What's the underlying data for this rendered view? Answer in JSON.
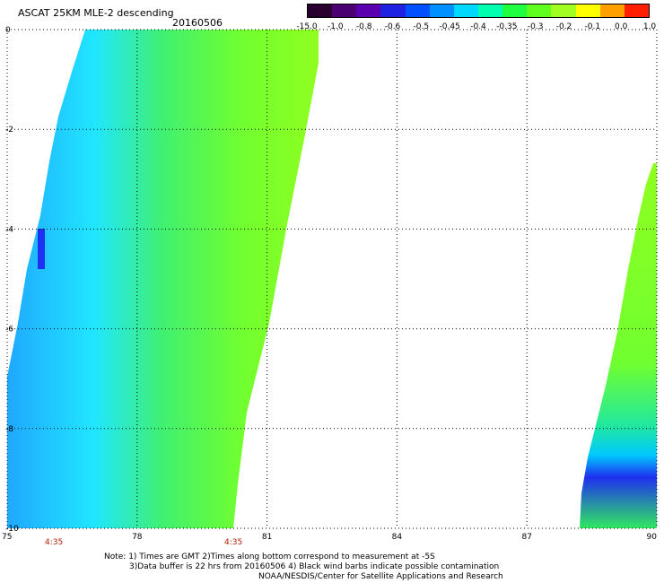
{
  "header": {
    "title": "ASCAT 25KM MLE-2 descending",
    "date": "20160506"
  },
  "colorbar": {
    "labels": [
      "-15.0",
      "-1.0",
      "-0.8",
      "-0.6",
      "-0.5",
      "-0.45",
      "-0.4",
      "-0.35",
      "-0.3",
      "-0.2",
      "-0.1",
      "0.0",
      "1.0"
    ],
    "colors": [
      "#2a0030",
      "#4a0070",
      "#5a00b0",
      "#2020e0",
      "#0050ff",
      "#0090ff",
      "#00d8ff",
      "#00ffb0",
      "#20ff40",
      "#60ff20",
      "#a0ff20",
      "#ffff00",
      "#ffa000",
      "#ff2000"
    ]
  },
  "map": {
    "x_axis": {
      "min": 75,
      "max": 90,
      "ticks": [
        "75",
        "78",
        "81",
        "84",
        "87",
        "90"
      ]
    },
    "y_axis": {
      "min": -10,
      "max": 0,
      "ticks": [
        "0",
        "-2",
        "-4",
        "-6",
        "-8",
        "-10"
      ]
    },
    "grid": "dotted",
    "swaths": [
      {
        "id": "left-swath",
        "pass_time": "4:35"
      },
      {
        "id": "right-swath"
      }
    ],
    "time_labels": [
      "4:35",
      "4:35"
    ]
  },
  "notes": {
    "line1": "Note: 1) Times are GMT 2)Times along bottom correspond to measurement at -5S",
    "line2": "3)Data buffer is 22 hrs from 20160506 4) Black wind barbs indicate possible contamination",
    "line3": "NOAA/NESDIS/Center for Satellite Applications and Research"
  }
}
